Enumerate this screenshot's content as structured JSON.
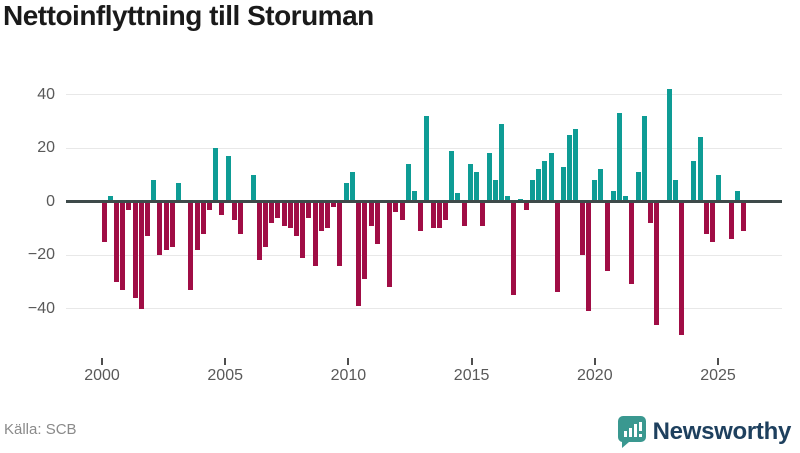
{
  "title": "Nettoinflyttning till Storuman",
  "source": "Källa: SCB",
  "branding": {
    "logo_text": "Newsworthy",
    "logo_icon": "bar-chart-speech-bubble-icon",
    "text_color": "#1e405e",
    "icon_color": "#3a9890"
  },
  "chart_data": {
    "type": "bar",
    "title": "Nettoinflyttning till Storuman",
    "frequency": "quarterly",
    "x_start": "2000 Q1",
    "x_end": "2025 Q4",
    "values": [
      -15,
      2,
      -30,
      -33,
      -3,
      -36,
      -40,
      -13,
      8,
      -20,
      -18,
      -17,
      7,
      0,
      -33,
      -18,
      -12,
      -3,
      20,
      -5,
      17,
      -7,
      -12,
      0,
      10,
      -22,
      -17,
      -8,
      -6,
      -9,
      -10,
      -13,
      -21,
      -6,
      -24,
      -11,
      -10,
      -2,
      -24,
      7,
      11,
      -39,
      -29,
      -9,
      -16,
      0,
      -32,
      -4,
      -7,
      14,
      4,
      -11,
      32,
      -10,
      -10,
      -7,
      19,
      3,
      -9,
      14,
      11,
      -9,
      18,
      8,
      29,
      2,
      -35,
      1,
      -3,
      8,
      12,
      15,
      18,
      -34,
      13,
      25,
      27,
      -20,
      -41,
      8,
      12,
      -26,
      4,
      33,
      2,
      -31,
      11,
      32,
      -8,
      -46,
      0,
      42,
      8,
      -50,
      0,
      15,
      24,
      -12,
      -15,
      10,
      0,
      -14,
      4,
      -11
    ],
    "pos_color": "#0e9c95",
    "neg_color": "#a00d45",
    "y_ticks": [
      40,
      20,
      0,
      -20,
      -40
    ],
    "y_tick_labels": [
      "40",
      "20",
      "0",
      "−20",
      "−40"
    ],
    "x_tick_years": [
      2000,
      2005,
      2010,
      2015,
      2020,
      2025
    ],
    "x_tick_labels": [
      "2000",
      "2005",
      "2010",
      "2015",
      "2020",
      "2025"
    ],
    "ylim": [
      -55,
      45
    ],
    "grid": "horizontal",
    "zero_line": true,
    "legend": "none"
  }
}
